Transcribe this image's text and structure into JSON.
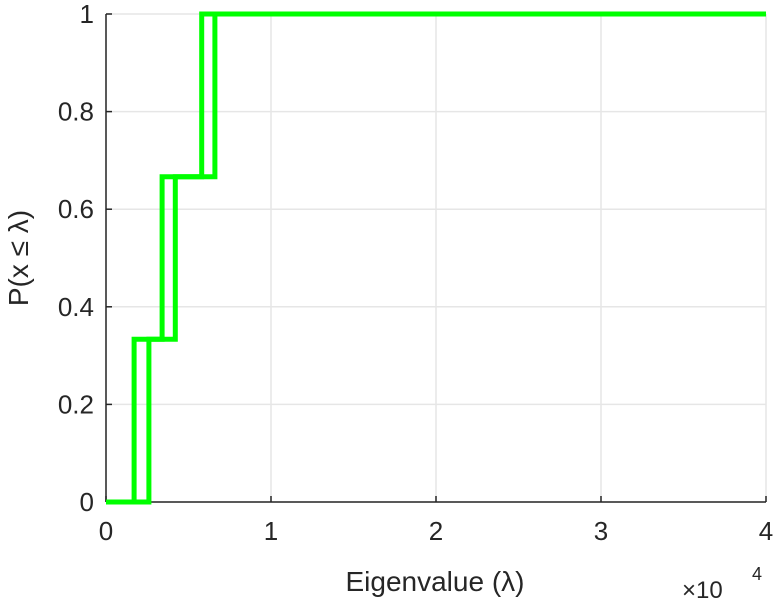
{
  "chart_data": {
    "type": "line",
    "title": "",
    "xlabel": "Eigenvalue (λ)",
    "ylabel": "P(x ≤ λ)",
    "xlim": [
      0,
      4
    ],
    "ylim": [
      0,
      1
    ],
    "x_scale_multiplier": "×10",
    "x_scale_exponent": "4",
    "x_ticks": [
      "0",
      "1",
      "2",
      "3",
      "4"
    ],
    "y_ticks": [
      "0",
      "0.2",
      "0.4",
      "0.6",
      "0.8",
      "1"
    ],
    "grid": true,
    "line_color": "#00ff00",
    "series": [
      {
        "x": [
          0,
          0.17,
          0.17,
          0.34,
          0.34,
          0.58,
          0.58,
          4
        ],
        "y": [
          0,
          0,
          0.3333,
          0.3333,
          0.6667,
          0.6667,
          1,
          1
        ]
      },
      {
        "x": [
          0,
          0.26,
          0.26,
          0.42,
          0.42,
          0.66,
          0.66,
          4
        ],
        "y": [
          0,
          0,
          0.3333,
          0.3333,
          0.6667,
          0.6667,
          1,
          1
        ]
      }
    ]
  }
}
